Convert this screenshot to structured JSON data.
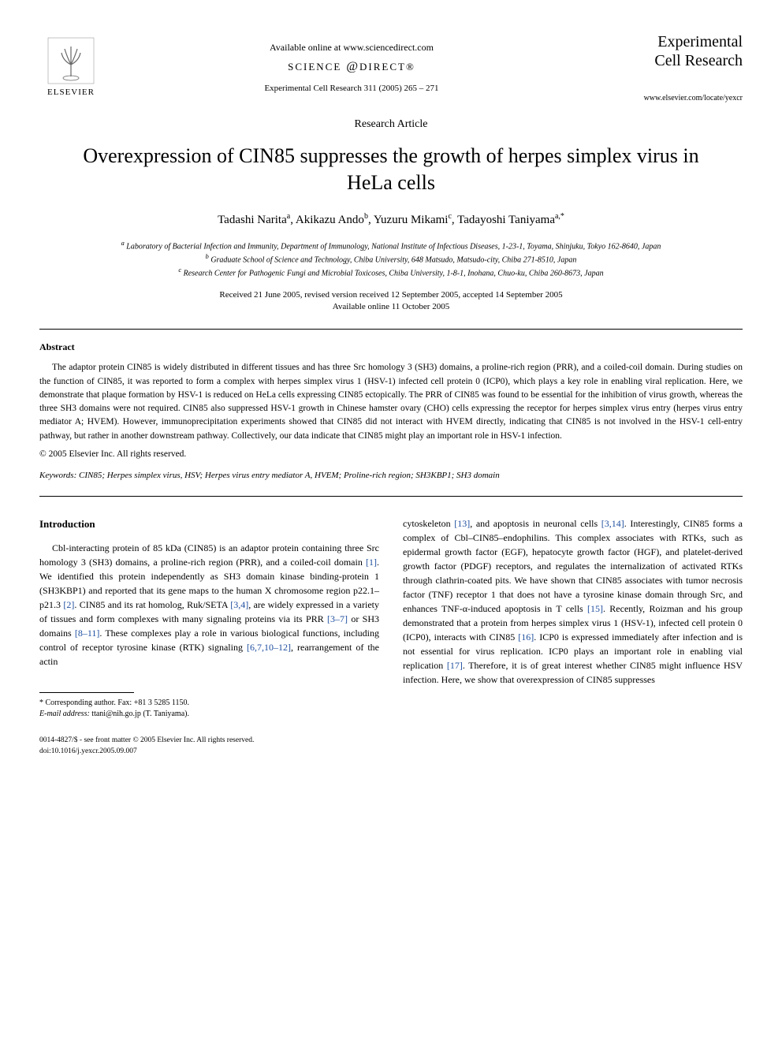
{
  "header": {
    "available_online": "Available online at www.sciencedirect.com",
    "sciencedirect": "SCIENCE",
    "sd_at": "d",
    "sd_direct": "DIRECT",
    "elsevier": "ELSEVIER",
    "journal_ref": "Experimental Cell Research 311 (2005) 265 – 271",
    "journal_name_line1": "Experimental",
    "journal_name_line2": "Cell Research",
    "journal_url": "www.elsevier.com/locate/yexcr"
  },
  "article": {
    "type": "Research Article",
    "title": "Overexpression of CIN85 suppresses the growth of herpes simplex virus in HeLa cells",
    "authors_html": "Tadashi Narita<sup>a</sup>, Akikazu Ando<sup>b</sup>, Yuzuru Mikami<sup>c</sup>, Tadayoshi Taniyama<sup>a,*</sup>",
    "affiliations": {
      "a": "Laboratory of Bacterial Infection and Immunity, Department of Immunology, National Institute of Infectious Diseases, 1-23-1, Toyama, Shinjuku, Tokyo 162-8640, Japan",
      "b": "Graduate School of Science and Technology, Chiba University, 648 Matsudo, Matsudo-city, Chiba 271-8510, Japan",
      "c": "Research Center for Pathogenic Fungi and Microbial Toxicoses, Chiba University, 1-8-1, Inohana, Chuo-ku, Chiba 260-8673, Japan"
    },
    "dates_line1": "Received 21 June 2005, revised version received 12 September 2005, accepted 14 September 2005",
    "dates_line2": "Available online 11 October 2005"
  },
  "abstract": {
    "heading": "Abstract",
    "text": "The adaptor protein CIN85 is widely distributed in different tissues and has three Src homology 3 (SH3) domains, a proline-rich region (PRR), and a coiled-coil domain. During studies on the function of CIN85, it was reported to form a complex with herpes simplex virus 1 (HSV-1) infected cell protein 0 (ICP0), which plays a key role in enabling viral replication. Here, we demonstrate that plaque formation by HSV-1 is reduced on HeLa cells expressing CIN85 ectopically. The PRR of CIN85 was found to be essential for the inhibition of virus growth, whereas the three SH3 domains were not required. CIN85 also suppressed HSV-1 growth in Chinese hamster ovary (CHO) cells expressing the receptor for herpes simplex virus entry (herpes virus entry mediator A; HVEM). However, immunoprecipitation experiments showed that CIN85 did not interact with HVEM directly, indicating that CIN85 is not involved in the HSV-1 cell-entry pathway, but rather in another downstream pathway. Collectively, our data indicate that CIN85 might play an important role in HSV-1 infection.",
    "copyright": "© 2005 Elsevier Inc. All rights reserved."
  },
  "keywords": {
    "label": "Keywords:",
    "text": "CIN85; Herpes simplex virus, HSV; Herpes virus entry mediator A, HVEM; Proline-rich region; SH3KBP1; SH3 domain"
  },
  "body": {
    "intro_heading": "Introduction",
    "col1_para1_pre": "Cbl-interacting protein of 85 kDa (CIN85) is an adaptor protein containing three Src homology 3 (SH3) domains, a proline-rich region (PRR), and a coiled-coil domain ",
    "cite1": "[1]",
    "col1_para1_mid1": ". We identified this protein independently as SH3 domain kinase binding-protein 1 (SH3KBP1) and reported that its gene maps to the human X chromosome region p22.1–p21.3 ",
    "cite2": "[2]",
    "col1_para1_mid2": ". CIN85 and its rat homolog, Ruk/SETA ",
    "cite34": "[3,4]",
    "col1_para1_mid3": ", are widely expressed in a variety of tissues and form complexes with many signaling proteins via its PRR ",
    "cite37": "[3–7]",
    "col1_para1_mid4": " or SH3 domains ",
    "cite811": "[8–11]",
    "col1_para1_mid5": ". These complexes play a role in various biological functions, including control of receptor tyrosine kinase (RTK) signaling ",
    "cite671012": "[6,7,10–12]",
    "col1_para1_end": ", rearrangement of the actin",
    "col2_para1_pre": "cytoskeleton ",
    "cite13": "[13]",
    "col2_para1_mid1": ", and apoptosis in neuronal cells ",
    "cite314": "[3,14]",
    "col2_para1_mid2": ". Interestingly, CIN85 forms a complex of Cbl–CIN85–endophilins. This complex associates with RTKs, such as epidermal growth factor (EGF), hepatocyte growth factor (HGF), and platelet-derived growth factor (PDGF) receptors, and regulates the internalization of activated RTKs through clathrin-coated pits. We have shown that CIN85 associates with tumor necrosis factor (TNF) receptor 1 that does not have a tyrosine kinase domain through Src, and enhances TNF-α-induced apoptosis in T cells ",
    "cite15": "[15]",
    "col2_para1_mid3": ". Recently, Roizman and his group demonstrated that a protein from herpes simplex virus 1 (HSV-1), infected cell protein 0 (ICP0), interacts with CIN85 ",
    "cite16": "[16]",
    "col2_para1_mid4": ". ICP0 is expressed immediately after infection and is not essential for virus replication. ICP0 plays an important role in enabling vial replication ",
    "cite17": "[17]",
    "col2_para1_end": ". Therefore, it is of great interest whether CIN85 might influence HSV infection. Here, we show that overexpression of CIN85 suppresses"
  },
  "footnote": {
    "corresponding": "* Corresponding author. Fax: +81 3 5285 1150.",
    "email_label": "E-mail address:",
    "email": "ttani@nih.go.jp (T. Taniyama)."
  },
  "footer": {
    "line1": "0014-4827/$ - see front matter © 2005 Elsevier Inc. All rights reserved.",
    "line2": "doi:10.1016/j.yexcr.2005.09.007"
  },
  "colors": {
    "cite": "#2050a0",
    "text": "#000000",
    "bg": "#ffffff"
  }
}
